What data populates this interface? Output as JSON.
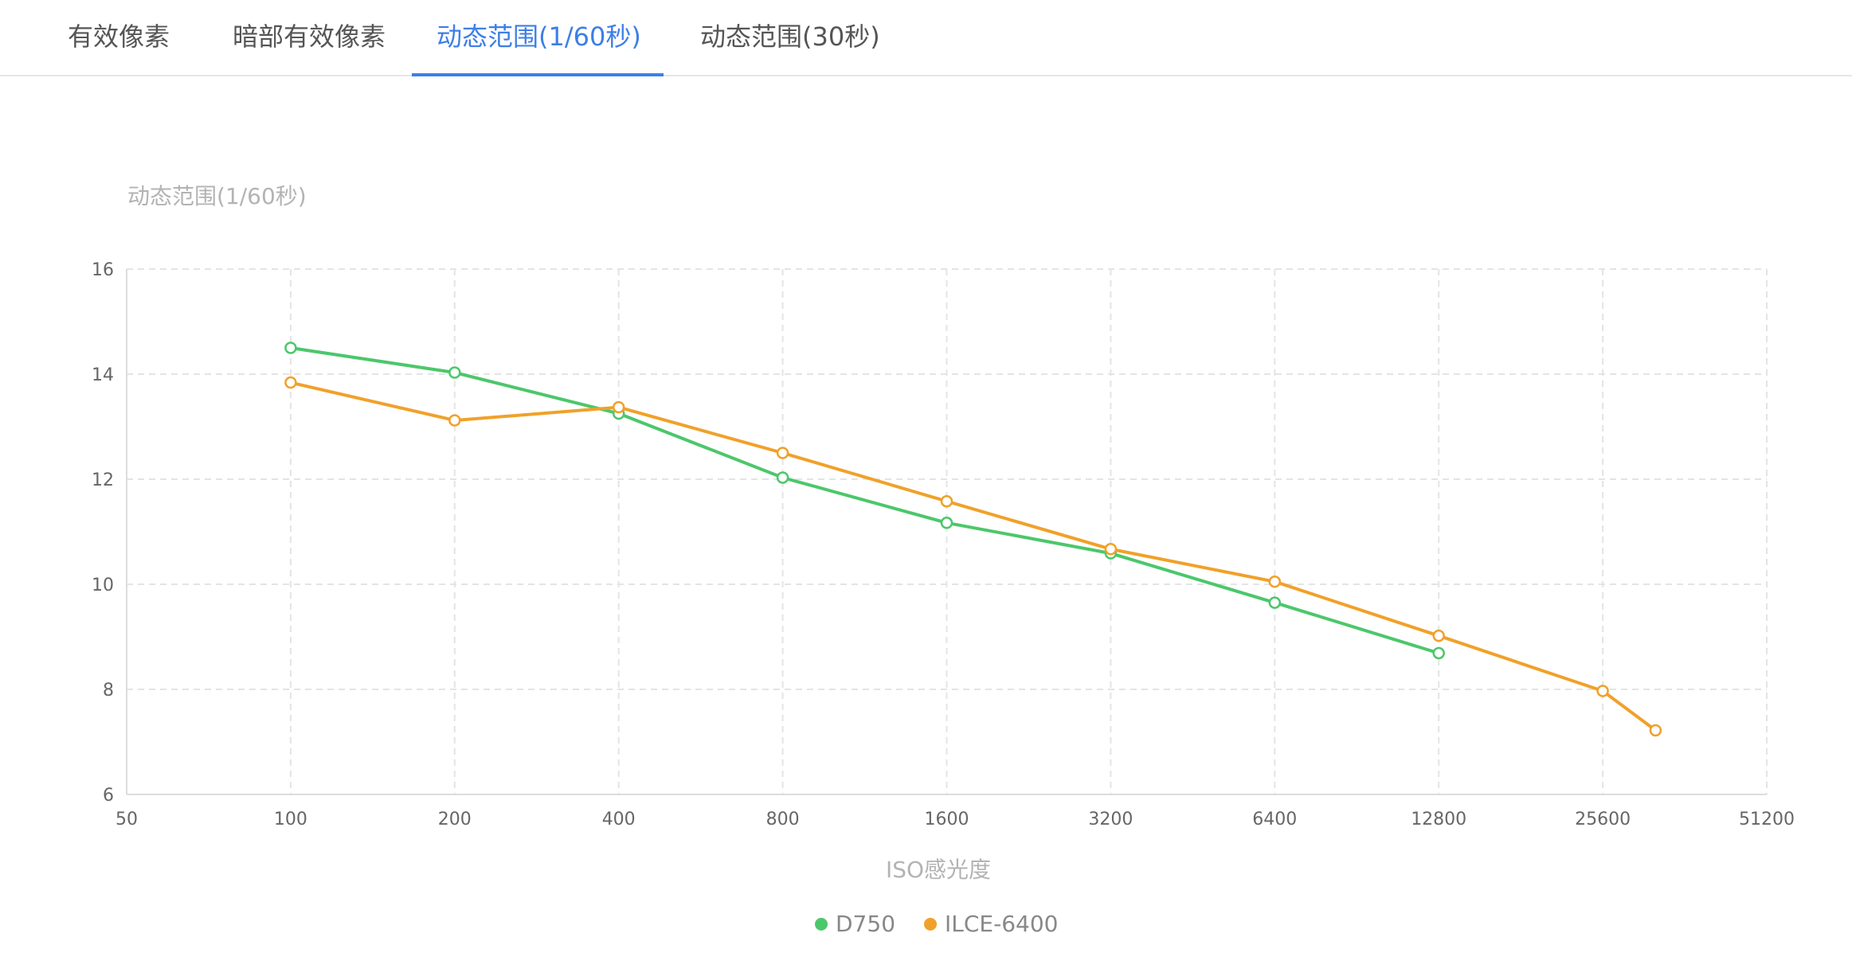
{
  "tabs": [
    {
      "label": "有效像素",
      "active": false
    },
    {
      "label": "暗部有效像素",
      "active": false
    },
    {
      "label": "动态范围(1/60秒)",
      "active": true
    },
    {
      "label": "动态范围(30秒)",
      "active": false
    }
  ],
  "colors": {
    "accent": "#3d7fe6",
    "d750": "#4cc76b",
    "ilce": "#f0a12a"
  },
  "chart_data": {
    "type": "line",
    "ylabel": "动态范围(1/60秒)",
    "xlabel": "ISO感光度",
    "x_scale": "log2",
    "xlim": [
      50,
      51200
    ],
    "ylim": [
      6,
      16
    ],
    "x_ticks": [
      "50",
      "100",
      "200",
      "400",
      "800",
      "1600",
      "3200",
      "6400",
      "12800",
      "25600",
      "51200"
    ],
    "y_ticks": [
      "6",
      "8",
      "10",
      "12",
      "14",
      "16"
    ],
    "grid": true,
    "legend_position": "bottom-center",
    "series": [
      {
        "name": "D750",
        "color": "#4cc76b",
        "points": [
          [
            100,
            14.5
          ],
          [
            200,
            14.03
          ],
          [
            400,
            13.25
          ],
          [
            800,
            12.03
          ],
          [
            1600,
            11.17
          ],
          [
            3200,
            10.59
          ],
          [
            6400,
            9.65
          ],
          [
            12800,
            8.69
          ]
        ]
      },
      {
        "name": "ILCE-6400",
        "color": "#f0a12a",
        "points": [
          [
            100,
            13.84
          ],
          [
            200,
            13.12
          ],
          [
            400,
            13.37
          ],
          [
            800,
            12.5
          ],
          [
            1600,
            11.58
          ],
          [
            3200,
            10.67
          ],
          [
            6400,
            10.05
          ],
          [
            12800,
            9.02
          ],
          [
            25600,
            7.97
          ],
          [
            32000,
            7.22
          ]
        ]
      }
    ]
  }
}
